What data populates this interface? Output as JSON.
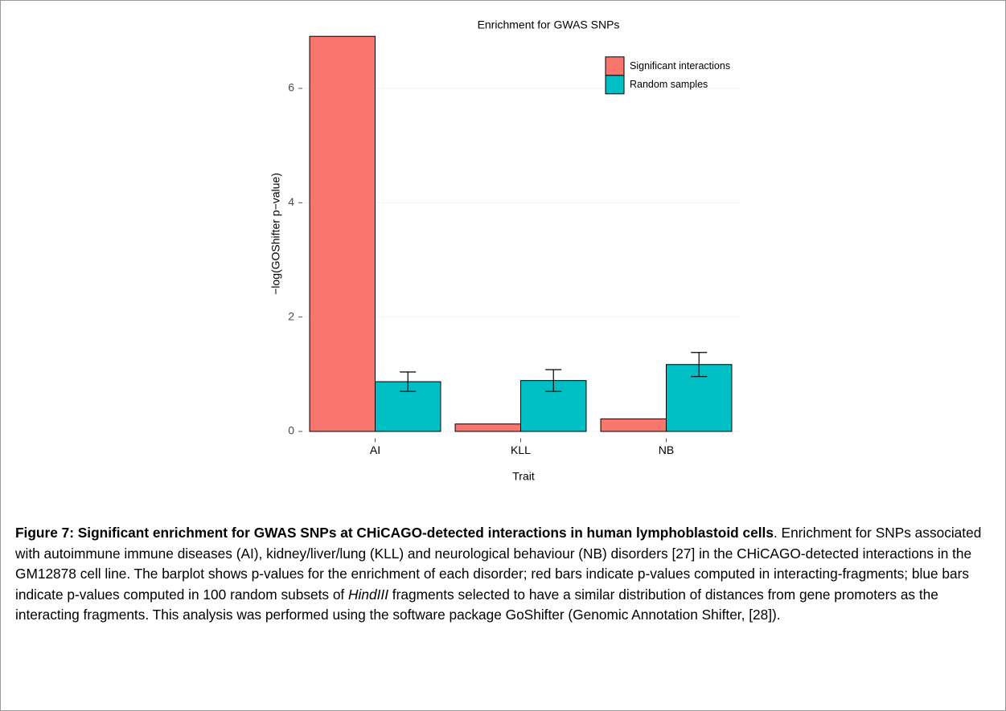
{
  "chart_data": {
    "type": "bar",
    "title": "Enrichment for GWAS SNPs",
    "x_label": "Trait",
    "y_label": "−log(GOShifter p−value)",
    "categories": [
      "AI",
      "KLL",
      "NB"
    ],
    "series": [
      {
        "name": "Significant interactions",
        "color": "#F8766D",
        "values": [
          6.91,
          0.13,
          0.22
        ]
      },
      {
        "name": "Random samples",
        "color": "#00BFC4",
        "values": [
          0.87,
          0.89,
          1.17
        ],
        "errors": [
          0.17,
          0.19,
          0.21
        ]
      }
    ],
    "ylim": [
      -0.12,
      7.0
    ],
    "yticks": [
      0,
      2,
      4,
      6
    ],
    "grid": true,
    "legend": "top-right"
  },
  "caption": {
    "label": "Figure 7: Significant enrichment for GWAS SNPs at CHiCAGO-detected interactions in human lymphoblastoid cells",
    "text": ". Enrichment for SNPs associated with autoimmune immune diseases (AI), kidney/liver/lung (KLL) and neurological behaviour (NB) disorders [27] in the CHiCAGO-detected interactions in the GM12878 cell line. The barplot shows p-values for the enrichment of each disorder; red bars indicate p-values computed in interacting-fragments; blue bars indicate p-values computed in 100 random subsets of ",
    "italic": "HindIII",
    "text_after": " fragments selected to have a similar distribution of distances from gene promoters as the interacting fragments. This analysis was performed using the software package GoShifter (Genomic Annotation Shifter, [28])."
  }
}
